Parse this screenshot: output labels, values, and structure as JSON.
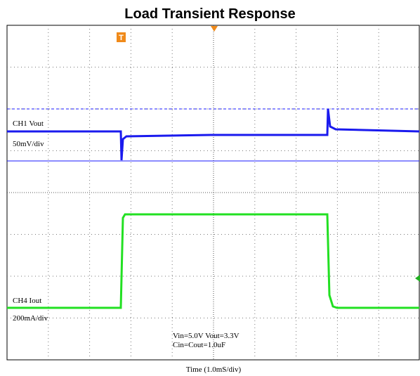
{
  "title": "Load Transient Response",
  "channel_labels": [
    "CH1  Vout",
    "50mV/div",
    "CH4  Iout",
    "200mA/div"
  ],
  "conditions": [
    "Vin=5.0V  Vout=3.3V",
    "Cin=Cout=1.0uF"
  ],
  "x_axis_label": "Time (1.0mS/div)",
  "trigger_marker": "T"
}
